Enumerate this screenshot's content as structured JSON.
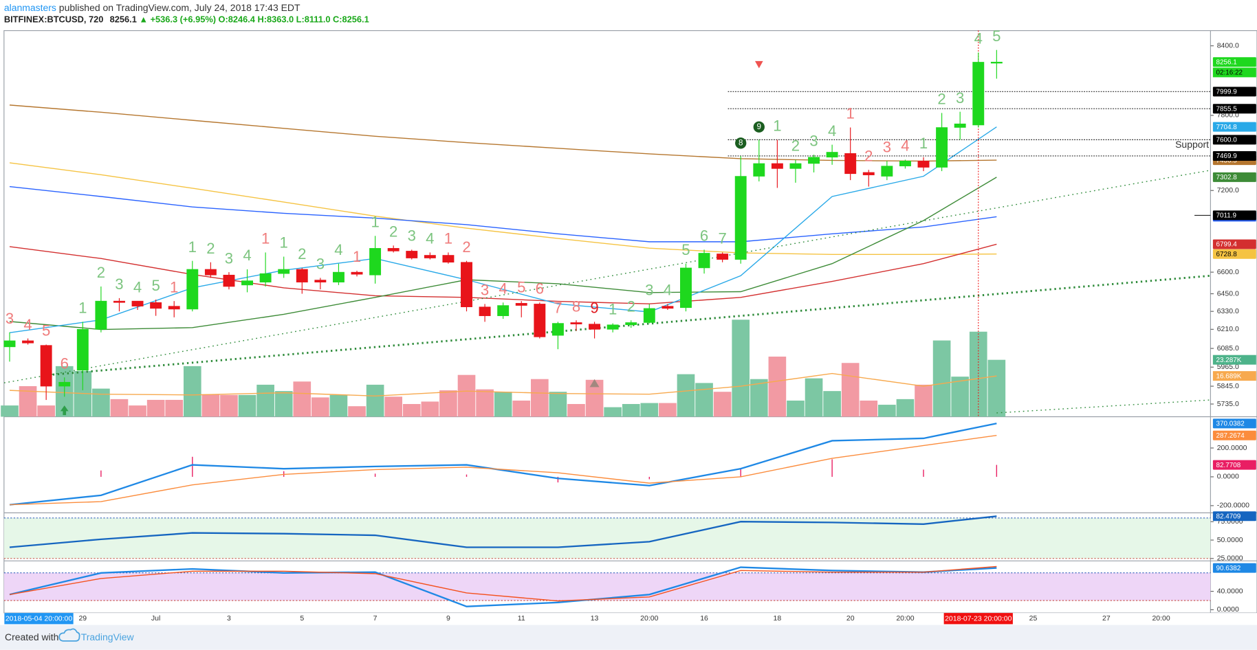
{
  "header": {
    "publisher": "alanmasters",
    "published": " published on TradingView.com, July 24, 2018 17:43 EDT",
    "symbol": "BITFINEX:BTCUSD, 720",
    "last": "8256.1",
    "direction_symbol": "▲",
    "change": "+536.3 (+6.95%)",
    "ohlc": [
      "O:8246.4",
      "H:8363.0",
      "L:8111.0",
      "C:8256.1"
    ]
  },
  "footer": {
    "created": "Created with",
    "brand": "TradingView"
  },
  "chart_data": {
    "type": "candlestick",
    "log_scale": true,
    "grid": false,
    "up_color": "#1ed81e",
    "down_color": "#e8141a",
    "candles": {
      "open": [
        6095,
        6135,
        6105,
        5845,
        5945,
        6210,
        6400,
        6400,
        6390,
        6365,
        6345,
        6620,
        6580,
        6510,
        6530,
        6590,
        6620,
        6545,
        6530,
        6600,
        6580,
        6770,
        6750,
        6720,
        6720,
        6670,
        6360,
        6300,
        6385,
        6380,
        6170,
        6255,
        6245,
        6210,
        6240,
        6255,
        6365,
        6355,
        6630,
        6730,
        6690,
        7310,
        7410,
        7370,
        7410,
        7460,
        7490,
        7340,
        7310,
        7390,
        7430,
        7380,
        7700,
        7720,
        8246.4
      ],
      "high": [
        6190,
        6150,
        6110,
        5900,
        6260,
        6500,
        6420,
        6400,
        6410,
        6400,
        6680,
        6670,
        6600,
        6620,
        6740,
        6710,
        6630,
        6560,
        6660,
        6610,
        6860,
        6790,
        6760,
        6740,
        6740,
        6680,
        6380,
        6390,
        6400,
        6390,
        6260,
        6270,
        6260,
        6250,
        6270,
        6380,
        6380,
        6660,
        6760,
        6740,
        7470,
        7600,
        7600,
        7440,
        7480,
        7560,
        7700,
        7360,
        7430,
        7440,
        7460,
        7820,
        7830,
        8340,
        8363
      ],
      "low": [
        6000,
        6110,
        5760,
        5780,
        5820,
        6190,
        6330,
        6340,
        6300,
        6290,
        6330,
        6560,
        6480,
        6460,
        6500,
        6560,
        6450,
        6480,
        6510,
        6570,
        6520,
        6740,
        6690,
        6690,
        6660,
        6330,
        6260,
        6280,
        6290,
        6150,
        6080,
        6200,
        6150,
        6190,
        6220,
        6250,
        6340,
        6330,
        6590,
        6670,
        6660,
        7270,
        7220,
        7260,
        7340,
        7400,
        7280,
        7230,
        7280,
        7370,
        7350,
        7350,
        7600,
        7700,
        8111
      ],
      "close": [
        6135,
        6120,
        5845,
        5870,
        6210,
        6400,
        6390,
        6365,
        6350,
        6345,
        6620,
        6580,
        6500,
        6540,
        6590,
        6620,
        6530,
        6530,
        6600,
        6585,
        6770,
        6750,
        6700,
        6700,
        6670,
        6360,
        6300,
        6370,
        6370,
        6160,
        6250,
        6245,
        6210,
        6240,
        6255,
        6350,
        6350,
        6630,
        6735,
        6690,
        7310,
        7410,
        7370,
        7410,
        7460,
        7500,
        7330,
        7320,
        7390,
        7430,
        7380,
        7700,
        7730,
        8255,
        8256.1
      ]
    },
    "ylim": [
      5658,
      8537
    ],
    "yticks": [
      {
        "value": 8400,
        "label": "8400.0"
      },
      {
        "value": 7800,
        "label": "7800.0"
      },
      {
        "value": 7200,
        "label": "7200.0"
      },
      {
        "value": 6600,
        "label": "6600.0"
      },
      {
        "value": 6450,
        "label": "6450.0"
      },
      {
        "value": 6330,
        "label": "6330.0"
      },
      {
        "value": 6210,
        "label": "6210.0"
      },
      {
        "value": 6085,
        "label": "6085.0"
      },
      {
        "value": 5965,
        "label": "5965.0"
      },
      {
        "value": 5845,
        "label": "5845.0"
      },
      {
        "value": 5735,
        "label": "5735.0"
      }
    ],
    "volume": {
      "up_color": "#7cc7a3",
      "down_color": "#f29aa3",
      "ylim": [
        0,
        158
      ],
      "values": [
        4.6,
        12.5,
        4.6,
        20.7,
        18.7,
        11.5,
        7.2,
        4.6,
        6.9,
        6.9,
        20.7,
        9.2,
        8.9,
        8.9,
        13.1,
        10.5,
        14.4,
        7.9,
        8.9,
        4.3,
        13.1,
        8.2,
        5.2,
        6.2,
        10.8,
        17.1,
        11.2,
        10.2,
        6.6,
        15.4,
        10.2,
        5.2,
        15.1,
        3.9,
        5.2,
        5.6,
        5.6,
        17.4,
        13.8,
        10.2,
        39.7,
        15.4,
        24.6,
        6.6,
        15.7,
        10.5,
        22.0,
        6.6,
        4.9,
        7.2,
        13.1,
        31.2,
        16.4,
        34.8,
        23.287
      ],
      "last_label": "23.287K",
      "label_color": "#4db38a",
      "ma": {
        "color": "#f7a94e",
        "values": [
          10.8,
          9.2,
          8.9,
          9.8,
          8.5,
          10.5,
          9.5,
          9.2,
          12.5,
          17.7,
          12.5,
          16.689
        ],
        "last_label": "16.689K"
      }
    },
    "sample_x": [
      0,
      5,
      10,
      15,
      20,
      25,
      30,
      35,
      40,
      45,
      50,
      54
    ],
    "moving_averages": [
      {
        "color": "#b5762e",
        "values": [
          7886,
          7826,
          7759,
          7693,
          7628,
          7577,
          7531,
          7486,
          7448,
          7435,
          7429,
          7436.5
        ]
      },
      {
        "color": "#f5c342",
        "values": [
          7416,
          7322,
          7217,
          7112,
          7006,
          6917,
          6841,
          6771,
          6737,
          6726,
          6726,
          6728.8
        ]
      },
      {
        "color": "#2962ff",
        "values": [
          7230,
          7154,
          7075,
          7027,
          6991,
          6943,
          6875,
          6817,
          6817,
          6875,
          6926,
          7001.5
        ]
      },
      {
        "color": "#d32f2f",
        "values": [
          6782,
          6697,
          6584,
          6491,
          6436,
          6425,
          6398,
          6381,
          6425,
          6535,
          6660,
          6799.4
        ]
      },
      {
        "color": "#3d8b37",
        "values": [
          6262,
          6209,
          6221,
          6310,
          6425,
          6547,
          6519,
          6458,
          6464,
          6660,
          6973,
          7302.8
        ]
      },
      {
        "color": "#29a9e8",
        "values": [
          6188,
          6273,
          6491,
          6614,
          6697,
          6547,
          6381,
          6326,
          6575,
          7154,
          7310,
          7704.8
        ]
      }
    ],
    "trendlines": [
      {
        "x": [
          -0.3,
          65.7
        ],
        "values": [
          5866,
          7357
        ],
        "color": "#2e8b3a",
        "width": 1.2,
        "dash": "1.5 4"
      },
      {
        "x": [
          2.1,
          65.7
        ],
        "values": [
          5915,
          6575
        ],
        "color": "#2e8b3a",
        "width": 2.5,
        "dash": "2 4"
      },
      {
        "x": [
          54,
          65.7
        ],
        "values": [
          5681,
          5760
        ],
        "color": "#2e8b3a",
        "width": 1.2,
        "dash": "1.5 4"
      }
    ],
    "price_labels": [
      {
        "value": 8256.1,
        "color": "#1ed81e"
      },
      {
        "value": 7999.9,
        "color": "#000000",
        "line": "dotted"
      },
      {
        "value": 7855.5,
        "color": "#000000",
        "line": "dotted"
      },
      {
        "value": 7600,
        "label": "7600.0",
        "color": "#000000",
        "line": "dotted"
      },
      {
        "value": 7469.9,
        "color": "#000000",
        "line": "dotted"
      },
      {
        "value": 7011.9,
        "color": "#000000",
        "line": "short"
      }
    ],
    "countdown": "02:16:22",
    "annotation": "Support",
    "td_labels": [
      "3",
      "4",
      "5",
      "6",
      "1",
      "2",
      "3",
      "4",
      "5",
      "1",
      "1",
      "2",
      "3",
      "4",
      "1",
      "1",
      "2",
      "3",
      "4",
      "1",
      "1",
      "2",
      "3",
      "4",
      "1",
      "2",
      "3",
      "4",
      "5",
      "6",
      "7",
      "8",
      "9",
      "1",
      "2",
      "3",
      "4",
      "5",
      "6",
      "7",
      "8",
      "9",
      "1",
      "2",
      "3",
      "4",
      "1",
      "2",
      "3",
      "4",
      "1",
      "2",
      "3",
      "4",
      "5"
    ],
    "td_colors": [
      "#ef7b7b",
      "#ef7b7b",
      "#ef7b7b",
      "#ef7b7b",
      "#7cc47f",
      "#7cc47f",
      "#7cc47f",
      "#7cc47f",
      "#7cc47f",
      "#ef7b7b",
      "#7cc47f",
      "#7cc47f",
      "#7cc47f",
      "#7cc47f",
      "#ef7b7b",
      "#7cc47f",
      "#7cc47f",
      "#7cc47f",
      "#7cc47f",
      "#ef7b7b",
      "#7cc47f",
      "#7cc47f",
      "#7cc47f",
      "#7cc47f",
      "#ef7b7b",
      "#ef7b7b",
      "#ef7b7b",
      "#ef7b7b",
      "#ef7b7b",
      "#ef7b7b",
      "#ef7b7b",
      "#ef7b7b",
      "#e0181f",
      "#7cc47f",
      "#7cc47f",
      "#7cc47f",
      "#7cc47f",
      "#7cc47f",
      "#7cc47f",
      "#7cc47f",
      "#1b5e20",
      "#1b5e20",
      "#7cc47f",
      "#7cc47f",
      "#7cc47f",
      "#7cc47f",
      "#ef7b7b",
      "#ef7b7b",
      "#ef7b7b",
      "#ef7b7b",
      "#7cc47f",
      "#7cc47f",
      "#7cc47f",
      "#7cc47f",
      "#7cc47f"
    ],
    "td_perfected": [
      40,
      41
    ],
    "x_axis": {
      "labels": [
        "29",
        "Jul",
        "3",
        "5",
        "7",
        "9",
        "11",
        "13",
        "20:00",
        "16",
        "18",
        "20",
        "20:00",
        "25",
        "27",
        "20:00"
      ],
      "x": [
        4,
        8,
        12,
        16,
        20,
        24,
        28,
        32,
        35,
        38,
        42,
        46,
        49,
        56,
        60,
        63
      ]
    },
    "cursor_labels": [
      {
        "text": "2018-05-04 20:00:00",
        "x": 1.6,
        "color": "#2196f3"
      },
      {
        "text": "2018-07-23 20:00:00",
        "x": 53,
        "color": "#f01010",
        "crosshair": true
      }
    ],
    "macd": {
      "ylim": [
        -250,
        417
      ],
      "yticks": [
        {
          "value": 200,
          "label": "200.0000"
        },
        {
          "value": 0,
          "label": "0.0000"
        },
        {
          "value": -200,
          "label": "-200.0000"
        }
      ],
      "series": [
        {
          "color": "#1e88e5",
          "values": [
            -194,
            -128,
            83,
            56,
            72,
            83,
            -11,
            -61,
            56,
            250,
            267,
            370.0382
          ]
        },
        {
          "color": "#fb8c3c",
          "values": [
            -194,
            -172,
            -56,
            17,
            50,
            67,
            28,
            -44,
            0,
            128,
            217,
            287.2674
          ]
        }
      ],
      "histogram": {
        "color": "#e91e63",
        "values": [
          0,
          44,
          139,
          39,
          22,
          16,
          -39,
          -17,
          56,
          122,
          50,
          82.7708
        ]
      }
    },
    "rsi": {
      "ylim": [
        21.7,
        87
      ],
      "yticks": [
        {
          "value": 75,
          "label": "75.0000"
        },
        {
          "value": 50,
          "label": "50.0000"
        },
        {
          "value": 25,
          "label": "25.0000"
        }
      ],
      "bands": [
        25,
        80
      ],
      "band_fill": "#e6f7e8",
      "series": [
        {
          "color": "#1565c0",
          "values": [
            40.2,
            51.1,
            59.8,
            58.7,
            56.5,
            40.2,
            40.2,
            47.8,
            75,
            73.9,
            71.7,
            82.4709
          ]
        }
      ]
    },
    "stoch": {
      "ylim": [
        -7,
        106
      ],
      "yticks": [
        {
          "value": 40,
          "label": "40.0000"
        },
        {
          "value": 0,
          "label": "0.0000"
        }
      ],
      "bands": [
        20,
        80
      ],
      "band_fill": "#eed6f7",
      "series": [
        {
          "color": "#1e88e5",
          "values": [
            33,
            80,
            88.7,
            80,
            81.7,
            7,
            15.7,
            33,
            92.2,
            85.2,
            81.7,
            90.6382
          ]
        },
        {
          "color": "#f4511e",
          "values": [
            33,
            67.8,
            83.5,
            83.5,
            78.3,
            36.5,
            19.1,
            27.8,
            85.2,
            81.7,
            81.7,
            93.9
          ]
        }
      ]
    }
  }
}
